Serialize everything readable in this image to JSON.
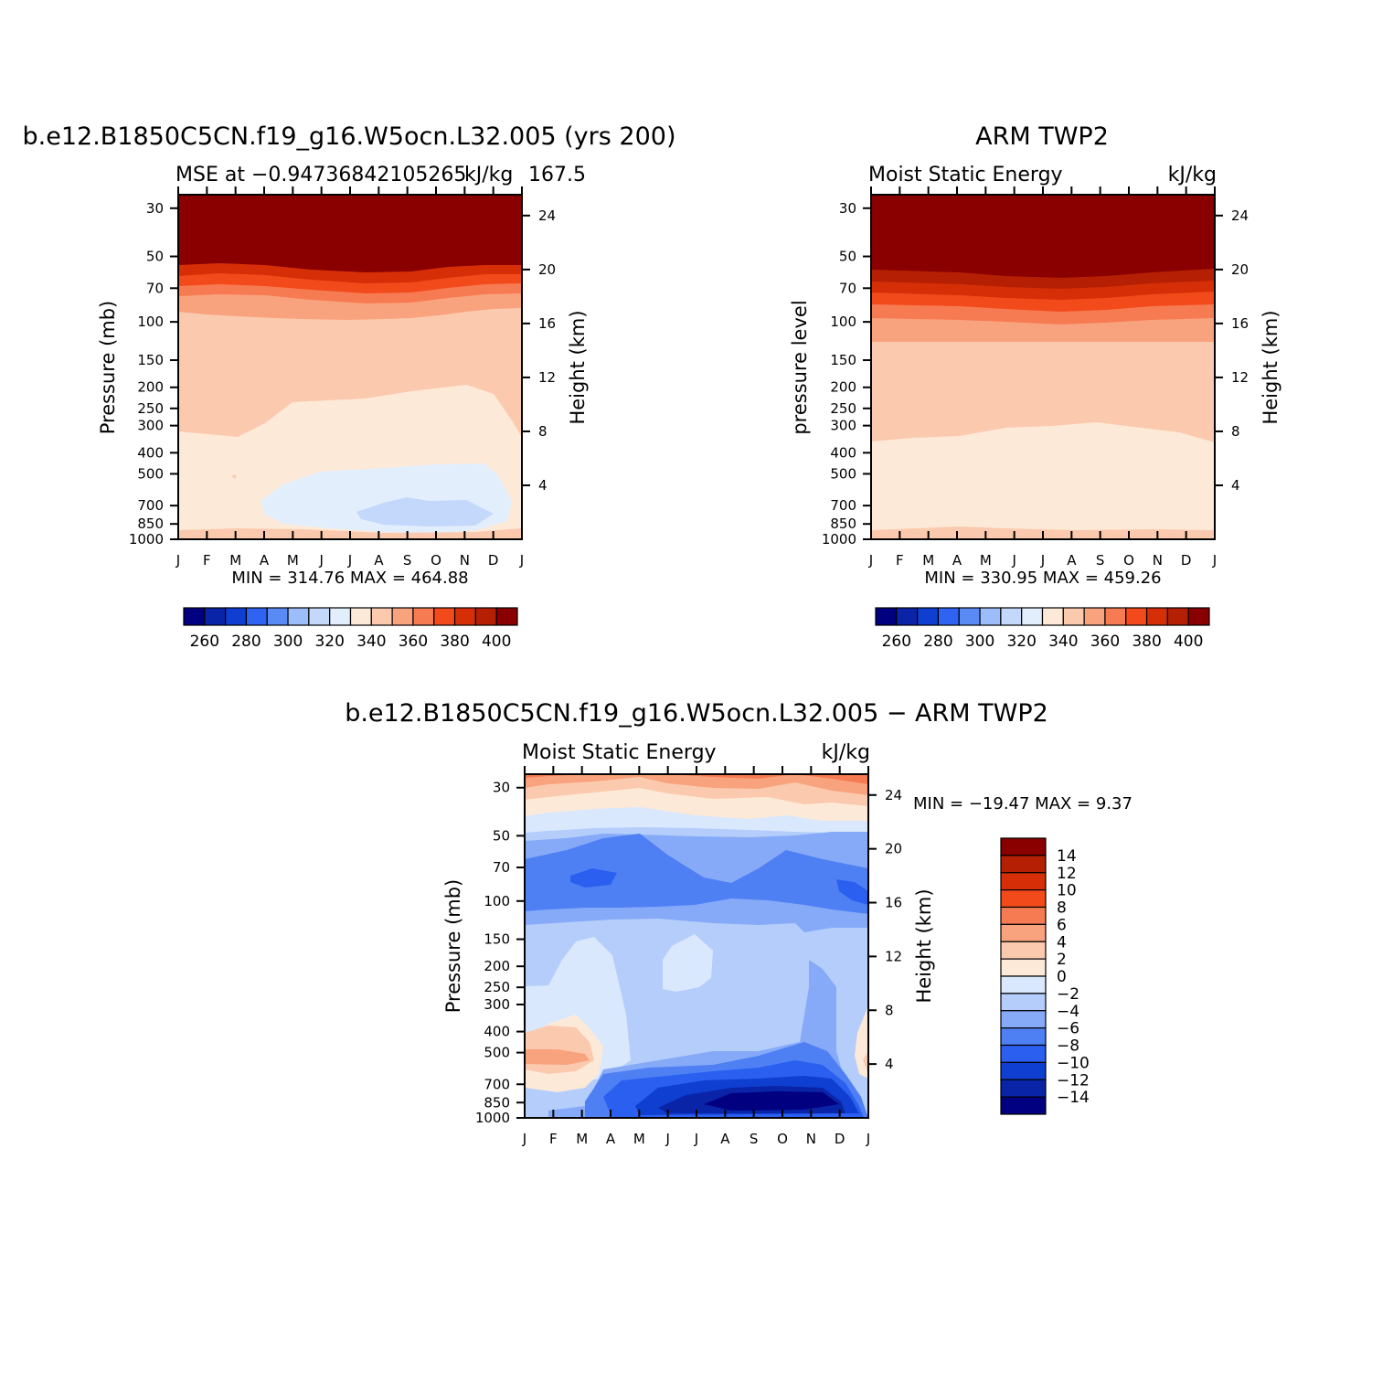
{
  "colors": {
    "abs_levels": [
      "#000080",
      "#0a24a8",
      "#0f3fd0",
      "#2f63f2",
      "#5a8bf5",
      "#9bbdf9",
      "#c3d8fb",
      "#e3eefd",
      "#fde9d8",
      "#fbcaae",
      "#f9a27e",
      "#f77b52",
      "#f24a1b",
      "#d62f07",
      "#b52004",
      "#8a0000"
    ],
    "diff_levels": [
      "#000080",
      "#0a24a8",
      "#0f3fd0",
      "#2a5ff0",
      "#4e80f4",
      "#86aaf8",
      "#b4cdfb",
      "#d9e8fd",
      "#fde9d8",
      "#fbcaae",
      "#f9a27e",
      "#f77b52",
      "#f24a1b",
      "#d62f07",
      "#b52004",
      "#8a0000"
    ]
  },
  "chart_data": [
    {
      "type": "heatmap",
      "panel": "model",
      "title": "b.e12.B1850C5CN.f19_g16.W5ocn.L32.005 (yrs 200)",
      "left_label": "MSE at −0.947368421052650K ",
      "overlap_label": "kJ/kg",
      "right_label": "167.5",
      "left_label_full": "MSE at −0.94736842105265",
      "subtitle_full": "MSE at −0.947368421052650kJ/kg167.5",
      "xlabel": "",
      "ylabel": "Pressure (mb)",
      "y2label": "Height (km)",
      "x_ticks": [
        "J",
        "F",
        "M",
        "A",
        "M",
        "J",
        "J",
        "A",
        "S",
        "O",
        "N",
        "D",
        "J"
      ],
      "y_ticks": [
        "30",
        "50",
        "70",
        "100",
        "150",
        "200",
        "250",
        "300",
        "400",
        "500",
        "700",
        "850",
        "1000"
      ],
      "y2_ticks": [
        "24",
        "20",
        "16",
        "12",
        "8",
        "4"
      ],
      "stats": "MIN =  314.76  MAX =  464.88",
      "colorbar_ticks": [
        "260",
        "280",
        "300",
        "320",
        "340",
        "360",
        "380",
        "400"
      ],
      "min": 314.76,
      "max": 464.88
    },
    {
      "type": "heatmap",
      "panel": "obs",
      "title": "ARM TWP2",
      "left_label": "Moist Static Energy",
      "right_label": "kJ/kg",
      "ylabel": "pressure level",
      "y2label": "Height (km)",
      "x_ticks": [
        "J",
        "F",
        "M",
        "A",
        "M",
        "J",
        "J",
        "A",
        "S",
        "O",
        "N",
        "D",
        "J"
      ],
      "y_ticks": [
        "30",
        "50",
        "70",
        "100",
        "150",
        "200",
        "250",
        "300",
        "400",
        "500",
        "700",
        "850",
        "1000"
      ],
      "y2_ticks": [
        "24",
        "20",
        "16",
        "12",
        "8",
        "4"
      ],
      "stats": "MIN =  330.95  MAX =  459.26",
      "colorbar_ticks": [
        "260",
        "280",
        "300",
        "320",
        "340",
        "360",
        "380",
        "400"
      ],
      "min": 330.95,
      "max": 459.26
    },
    {
      "type": "heatmap",
      "panel": "difference",
      "title": "b.e12.B1850C5CN.f19_g16.W5ocn.L32.005 − ARM TWP2",
      "left_label": "Moist Static Energy",
      "right_label": "kJ/kg",
      "ylabel": "Pressure (mb)",
      "y2label": "Height (km)",
      "x_ticks": [
        "J",
        "F",
        "M",
        "A",
        "M",
        "J",
        "J",
        "A",
        "S",
        "O",
        "N",
        "D",
        "J"
      ],
      "y_ticks": [
        "30",
        "50",
        "70",
        "100",
        "150",
        "200",
        "250",
        "300",
        "400",
        "500",
        "700",
        "850",
        "1000"
      ],
      "y2_ticks": [
        "24",
        "20",
        "16",
        "12",
        "8",
        "4"
      ],
      "stats": "MIN = −19.47  MAX =    9.37",
      "colorbar_ticks": [
        "14",
        "12",
        "10",
        "8",
        "6",
        "4",
        "2",
        "0",
        "−2",
        "−4",
        "−6",
        "−8",
        "−10",
        "−12",
        "−14"
      ],
      "min": -19.47,
      "max": 9.37
    }
  ]
}
